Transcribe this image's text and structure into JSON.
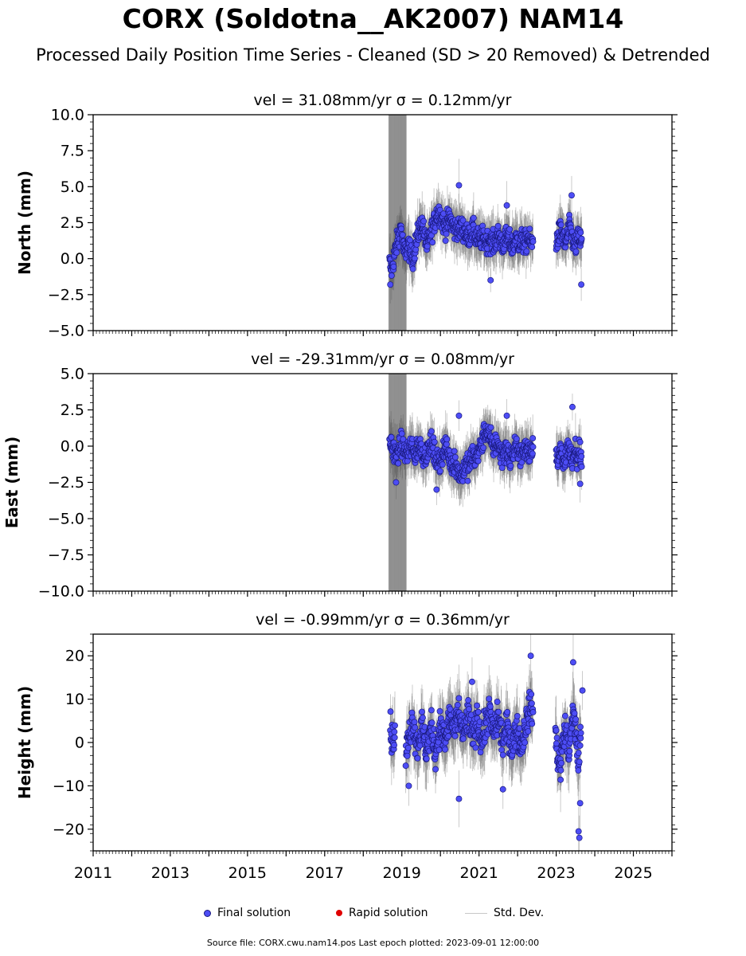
{
  "title": "CORX (Soldotna__AK2007) NAM14",
  "subtitle": "Processed Daily Position Time Series - Cleaned (SD > 20 Removed) & Detrended",
  "legend": {
    "final": "Final solution",
    "rapid": "Rapid solution",
    "std": "Std. Dev."
  },
  "footer": "Source file: CORX.cwu.nam14.pos  Last epoch plotted: 2023-09-01 12:00:00",
  "colors": {
    "final_fill": "#4d4df5",
    "final_edge": "#1a1a80",
    "rapid_fill": "#e00000",
    "errorbar": "#5a5a5a",
    "std_legend": "#c8c8c8"
  },
  "chart_data": [
    {
      "type": "scatter",
      "component": "north",
      "subtitle": "vel = 31.08mm/yr   σ = 0.12mm/yr",
      "ylabel": "North (mm)",
      "xlim": [
        2011.0,
        2026.0
      ],
      "ylim": [
        -5.0,
        10.0
      ],
      "yticks": [
        -5.0,
        -2.5,
        0.0,
        2.5,
        5.0,
        7.5,
        10.0
      ],
      "ytick_labels": [
        "−5.0",
        "−2.5",
        "0.0",
        "2.5",
        "5.0",
        "7.5",
        "10.0"
      ],
      "xticks": [
        2011,
        2013,
        2015,
        2017,
        2019,
        2021,
        2023,
        2025
      ],
      "series": [
        {
          "name": "Final solution",
          "segments": [
            {
              "x": [
                2018.68,
                2018.74,
                2018.8,
                2018.86,
                2018.92,
                2018.98,
                2019.04,
                2019.1,
                2019.16,
                2019.22,
                2019.28,
                2019.34,
                2019.4,
                2019.46,
                2019.52,
                2019.58,
                2019.64,
                2019.7,
                2019.76,
                2019.82,
                2019.88,
                2019.94,
                2020.0,
                2020.06,
                2020.12,
                2020.18,
                2020.24,
                2020.3,
                2020.36,
                2020.42,
                2020.48,
                2020.54,
                2020.6,
                2020.66,
                2020.72,
                2020.78,
                2020.84,
                2020.9,
                2020.96,
                2021.02,
                2021.08,
                2021.14,
                2021.2,
                2021.26,
                2021.32,
                2021.38,
                2021.44,
                2021.5,
                2021.56,
                2021.62,
                2021.68,
                2021.74,
                2021.8,
                2021.86,
                2021.92,
                2021.98,
                2022.04,
                2022.1,
                2022.16,
                2022.22,
                2022.28,
                2022.34,
                2022.4
              ],
              "y": [
                -0.3,
                -0.8,
                0.2,
                0.9,
                1.6,
                2.2,
                0.6,
                0.4,
                1.1,
                0.3,
                0.0,
                0.8,
                1.5,
                2.1,
                2.4,
                1.7,
                0.9,
                1.2,
                1.9,
                2.3,
                2.9,
                3.3,
                3.0,
                2.6,
                2.2,
                2.5,
                2.8,
                2.4,
                2.0,
                2.3,
                1.9,
                2.2,
                2.0,
                1.7,
                1.5,
                1.8,
                2.0,
                1.6,
                1.4,
                1.2,
                1.5,
                1.3,
                1.1,
                1.4,
                1.2,
                1.0,
                1.3,
                1.6,
                1.2,
                1.0,
                1.3,
                1.5,
                1.1,
                0.9,
                1.2,
                1.4,
                1.0,
                1.3,
                1.1,
                1.2,
                1.5,
                1.0,
                1.2
              ]
            },
            {
              "x": [
                2023.0,
                2023.06,
                2023.12,
                2023.18,
                2023.24,
                2023.3,
                2023.36,
                2023.42,
                2023.48,
                2023.54,
                2023.6,
                2023.66
              ],
              "y": [
                1.2,
                1.6,
                2.0,
                1.5,
                1.0,
                1.8,
                2.2,
                1.4,
                0.8,
                1.2,
                1.5,
                1.0
              ]
            }
          ],
          "outliers": [
            {
              "x": 2018.7,
              "y": -1.8
            },
            {
              "x": 2020.48,
              "y": 5.1
            },
            {
              "x": 2021.72,
              "y": 3.7
            },
            {
              "x": 2023.4,
              "y": 4.4
            },
            {
              "x": 2023.65,
              "y": -1.8
            },
            {
              "x": 2021.3,
              "y": -1.5
            }
          ]
        }
      ]
    },
    {
      "type": "scatter",
      "component": "east",
      "subtitle": "vel = -29.31mm/yr   σ = 0.08mm/yr",
      "ylabel": "East (mm)",
      "xlim": [
        2011.0,
        2026.0
      ],
      "ylim": [
        -10.0,
        5.0
      ],
      "yticks": [
        -10.0,
        -7.5,
        -5.0,
        -2.5,
        0.0,
        2.5,
        5.0
      ],
      "ytick_labels": [
        "−10.0",
        "−7.5",
        "−5.0",
        "−2.5",
        "0.0",
        "2.5",
        "5.0"
      ],
      "xticks": [
        2011,
        2013,
        2015,
        2017,
        2019,
        2021,
        2023,
        2025
      ],
      "series": [
        {
          "name": "Final solution",
          "segments": [
            {
              "x": [
                2018.68,
                2018.74,
                2018.8,
                2018.86,
                2018.92,
                2018.98,
                2019.04,
                2019.1,
                2019.16,
                2019.22,
                2019.28,
                2019.34,
                2019.4,
                2019.46,
                2019.52,
                2019.58,
                2019.64,
                2019.7,
                2019.76,
                2019.82,
                2019.88,
                2019.94,
                2020.0,
                2020.06,
                2020.12,
                2020.18,
                2020.24,
                2020.3,
                2020.36,
                2020.42,
                2020.48,
                2020.54,
                2020.6,
                2020.66,
                2020.72,
                2020.78,
                2020.84,
                2020.9,
                2020.96,
                2021.02,
                2021.08,
                2021.14,
                2021.2,
                2021.26,
                2021.32,
                2021.38,
                2021.44,
                2021.5,
                2021.56,
                2021.62,
                2021.68,
                2021.74,
                2021.8,
                2021.86,
                2021.92,
                2021.98,
                2022.04,
                2022.1,
                2022.16,
                2022.22,
                2022.28,
                2022.34,
                2022.4
              ],
              "y": [
                0.3,
                0.0,
                -0.4,
                -0.8,
                -0.3,
                0.1,
                -0.2,
                -0.5,
                -0.4,
                0.0,
                -0.3,
                -0.6,
                -0.2,
                0.1,
                -0.4,
                -0.7,
                -0.5,
                -0.2,
                0.2,
                -0.3,
                -0.8,
                -1.2,
                -0.9,
                -0.5,
                -0.1,
                -0.4,
                -0.9,
                -1.3,
                -1.0,
                -1.5,
                -1.8,
                -2.1,
                -1.6,
                -1.2,
                -1.5,
                -1.0,
                -0.6,
                -0.9,
                -0.5,
                -0.2,
                0.3,
                0.8,
                1.1,
                0.6,
                0.2,
                -0.1,
                0.3,
                0.0,
                -0.4,
                -0.6,
                -0.2,
                -0.5,
                -0.9,
                -0.6,
                -0.3,
                0.0,
                -0.4,
                -0.7,
                -0.3,
                -0.1,
                -0.5,
                -0.2,
                0.1
              ]
            },
            {
              "x": [
                2023.0,
                2023.06,
                2023.12,
                2023.18,
                2023.24,
                2023.3,
                2023.36,
                2023.42,
                2023.48,
                2023.54,
                2023.6,
                2023.66
              ],
              "y": [
                -0.4,
                -0.8,
                -0.3,
                -1.2,
                -0.6,
                -0.2,
                -0.7,
                -1.1,
                -0.5,
                -0.9,
                -0.3,
                -0.8
              ]
            }
          ],
          "outliers": [
            {
              "x": 2018.85,
              "y": -2.5
            },
            {
              "x": 2020.48,
              "y": 2.1
            },
            {
              "x": 2021.72,
              "y": 2.1
            },
            {
              "x": 2023.42,
              "y": 2.7
            },
            {
              "x": 2019.9,
              "y": -3.0
            },
            {
              "x": 2023.62,
              "y": -2.6
            }
          ]
        }
      ]
    },
    {
      "type": "scatter",
      "component": "height",
      "subtitle": "vel = -0.99mm/yr   σ = 0.36mm/yr",
      "ylabel": "Height (mm)",
      "xlim": [
        2011.0,
        2026.0
      ],
      "ylim": [
        -25.0,
        25.0
      ],
      "yticks": [
        -20,
        -10,
        0,
        10,
        20
      ],
      "ytick_labels": [
        "−20",
        "−10",
        "0",
        "10",
        "20"
      ],
      "xticks": [
        2011,
        2013,
        2015,
        2017,
        2019,
        2021,
        2023,
        2025
      ],
      "xtick_labels": [
        "2011",
        "2013",
        "2015",
        "2017",
        "2019",
        "2021",
        "2023",
        "2025"
      ],
      "series": [
        {
          "name": "Final solution",
          "segments": [
            {
              "x": [
                2018.7,
                2018.76,
                2018.82
              ],
              "y": [
                3.0,
                0.5,
                1.5
              ]
            },
            {
              "x": [
                2019.1,
                2019.16,
                2019.22,
                2019.28,
                2019.34,
                2019.4,
                2019.46,
                2019.52,
                2019.58,
                2019.64,
                2019.7,
                2019.76,
                2019.82,
                2019.88,
                2019.94,
                2020.0,
                2020.06,
                2020.12,
                2020.18,
                2020.24,
                2020.3,
                2020.36,
                2020.42,
                2020.48,
                2020.54,
                2020.6,
                2020.66,
                2020.72,
                2020.78,
                2020.84,
                2020.9,
                2020.96,
                2021.02,
                2021.08,
                2021.14,
                2021.2,
                2021.26,
                2021.32,
                2021.38,
                2021.44,
                2021.5,
                2021.56,
                2021.62,
                2021.68,
                2021.74,
                2021.8,
                2021.86,
                2021.92,
                2021.98,
                2022.04,
                2022.1,
                2022.16,
                2022.22,
                2022.28,
                2022.34,
                2022.4
              ],
              "y": [
                -3.0,
                0.0,
                3.0,
                5.5,
                2.0,
                -1.0,
                1.5,
                4.0,
                0.5,
                -2.0,
                1.0,
                3.5,
                0.0,
                -2.5,
                1.5,
                4.0,
                2.0,
                0.0,
                3.0,
                6.0,
                4.5,
                2.0,
                5.0,
                7.0,
                4.0,
                1.5,
                4.0,
                6.5,
                3.5,
                1.0,
                3.0,
                5.5,
                2.5,
                0.0,
                3.0,
                5.0,
                7.0,
                4.5,
                2.0,
                4.0,
                6.0,
                2.5,
                0.0,
                2.0,
                4.0,
                1.0,
                -1.5,
                1.5,
                3.5,
                0.5,
                -1.0,
                2.0,
                4.5,
                6.5,
                8.5,
                7.0
              ]
            },
            {
              "x": [
                2022.98,
                2023.04,
                2023.1,
                2023.16,
                2023.22,
                2023.28,
                2023.34,
                2023.4,
                2023.46,
                2023.52,
                2023.58,
                2023.64
              ],
              "y": [
                2.0,
                -3.0,
                -6.0,
                -1.0,
                3.0,
                0.5,
                -2.0,
                4.0,
                6.5,
                1.0,
                -4.0,
                2.0
              ]
            }
          ],
          "outliers": [
            {
              "x": 2020.48,
              "y": -13.0
            },
            {
              "x": 2019.18,
              "y": -10.0
            },
            {
              "x": 2022.34,
              "y": 20.0
            },
            {
              "x": 2023.44,
              "y": 18.5
            },
            {
              "x": 2023.58,
              "y": -20.5
            },
            {
              "x": 2023.6,
              "y": -22.0
            },
            {
              "x": 2023.62,
              "y": -14.0
            },
            {
              "x": 2021.62,
              "y": -10.8
            },
            {
              "x": 2020.82,
              "y": 14.0
            },
            {
              "x": 2023.68,
              "y": 12.0
            }
          ]
        }
      ]
    }
  ]
}
